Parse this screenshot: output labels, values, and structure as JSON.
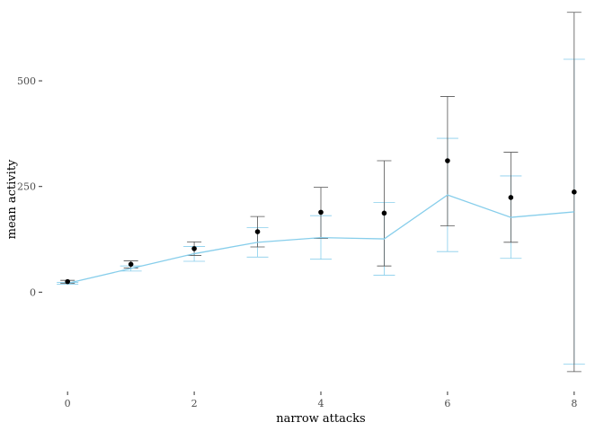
{
  "chart_data": {
    "type": "line",
    "xlabel": "narrow attacks",
    "ylabel": "mean activity",
    "xlim": [
      -0.4,
      8.4
    ],
    "ylim": [
      -235,
      670
    ],
    "x_ticks": [
      0,
      2,
      4,
      6,
      8
    ],
    "y_ticks": [
      0,
      250,
      500
    ],
    "x_tick_labels": [
      "0",
      "2",
      "4",
      "6",
      "8"
    ],
    "y_tick_labels": [
      "0",
      "250",
      "500"
    ],
    "grid": false,
    "observed": {
      "x": [
        0,
        1,
        2,
        3,
        4,
        5,
        6,
        7,
        8
      ],
      "mean": [
        25,
        66,
        103,
        143,
        189,
        187,
        311,
        224,
        237
      ],
      "lower": [
        21,
        57,
        87,
        107,
        127,
        62,
        157,
        118,
        -188
      ],
      "upper": [
        28,
        74,
        119,
        179,
        248,
        311,
        463,
        331,
        662
      ],
      "point_color": "#000000",
      "errorbar_color": "#555555"
    },
    "fitted": {
      "x": [
        0,
        1,
        2,
        3,
        4,
        5,
        6,
        7,
        8
      ],
      "values": [
        21,
        56,
        91,
        118,
        129,
        126,
        230,
        177,
        190
      ],
      "lower": [
        19,
        50,
        73,
        83,
        78,
        40,
        96,
        80,
        -170
      ],
      "upper": [
        23,
        62,
        108,
        153,
        181,
        212,
        364,
        275,
        551
      ],
      "color": "#87ceeb"
    }
  }
}
